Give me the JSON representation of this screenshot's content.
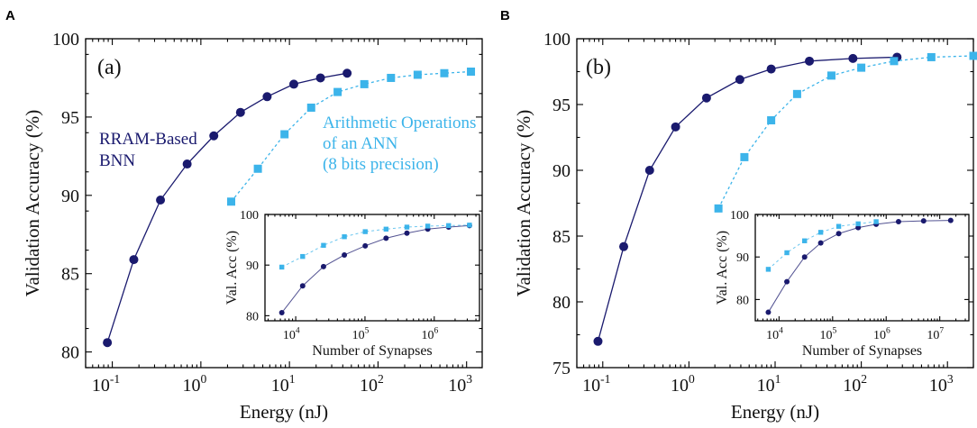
{
  "colors": {
    "rram": "#1a1a6e",
    "ann": "#3cb4ea",
    "axis": "#000000"
  },
  "chart_data": [
    {
      "panel": "A",
      "tag": "(a)",
      "type": "line",
      "xlabel": "Energy (nJ)",
      "ylabel": "Validation Accuracy (%)",
      "xscale": "log",
      "xlim": [
        0.05,
        1500
      ],
      "ylim": [
        79,
        100
      ],
      "xticks": [
        {
          "v": 0.1,
          "base": "10",
          "exp": "-1"
        },
        {
          "v": 1,
          "base": "10",
          "exp": "0"
        },
        {
          "v": 10,
          "base": "10",
          "exp": "1"
        },
        {
          "v": 100,
          "base": "10",
          "exp": "2"
        },
        {
          "v": 1000,
          "base": "10",
          "exp": "3"
        }
      ],
      "yticks": [
        80,
        85,
        90,
        95,
        100
      ],
      "series": [
        {
          "name": "RRAM-Based BNN",
          "marker": "circle",
          "color": "#1a1a6e",
          "x": [
            0.088,
            0.175,
            0.35,
            0.7,
            1.4,
            2.8,
            5.6,
            11.2,
            22.4,
            44.8
          ],
          "y": [
            80.6,
            85.9,
            89.7,
            92.0,
            93.8,
            95.3,
            96.3,
            97.1,
            97.5,
            97.8
          ]
        },
        {
          "name": "Arithmetic Operations of an ANN (8 bits precision)",
          "marker": "square",
          "color": "#3cb4ea",
          "x": [
            2.2,
            4.4,
            8.8,
            17.6,
            35,
            70,
            140,
            280,
            560,
            1120
          ],
          "y": [
            89.6,
            91.7,
            93.9,
            95.6,
            96.6,
            97.1,
            97.5,
            97.7,
            97.8,
            97.9
          ]
        }
      ],
      "annotations": {
        "rram_line1": "RRAM-Based",
        "rram_line2": "BNN",
        "ann_line1": "Arithmetic Operations",
        "ann_line2": "of an ANN",
        "ann_line3": "(8 bits precision)"
      },
      "inset": {
        "type": "line",
        "xlabel": "Number of Synapses",
        "ylabel": "Val. Acc (%)",
        "xscale": "log",
        "xlim": [
          3600,
          4500000
        ],
        "ylim": [
          79,
          100
        ],
        "xticks": [
          {
            "v": 10000,
            "base": "10",
            "exp": "4"
          },
          {
            "v": 100000,
            "base": "10",
            "exp": "5"
          },
          {
            "v": 1000000,
            "base": "10",
            "exp": "6"
          }
        ],
        "yticks": [
          80,
          90,
          100
        ],
        "series": [
          {
            "name": "RRAM-Based BNN",
            "marker": "circle",
            "color": "#1a1a6e",
            "x": [
              6300,
              12600,
              25200,
              50400,
              100800,
              201600,
              403200,
              806400,
              1612800,
              3225600
            ],
            "y": [
              80.6,
              85.9,
              89.7,
              92.0,
              93.8,
              95.3,
              96.3,
              97.1,
              97.5,
              97.8
            ]
          },
          {
            "name": "ANN",
            "marker": "square",
            "color": "#3cb4ea",
            "x": [
              6300,
              12600,
              25200,
              50400,
              100800,
              201600,
              403200,
              806400,
              1612800,
              3225600
            ],
            "y": [
              89.6,
              91.7,
              93.9,
              95.6,
              96.6,
              97.1,
              97.5,
              97.7,
              97.8,
              97.9
            ]
          }
        ]
      }
    },
    {
      "panel": "B",
      "tag": "(b)",
      "type": "line",
      "xlabel": "Energy (nJ)",
      "ylabel": "Validation Accuracy (%)",
      "xscale": "log",
      "xlim": [
        0.05,
        2000
      ],
      "ylim": [
        75,
        100
      ],
      "xticks": [
        {
          "v": 0.1,
          "base": "10",
          "exp": "-1"
        },
        {
          "v": 1,
          "base": "10",
          "exp": "0"
        },
        {
          "v": 10,
          "base": "10",
          "exp": "1"
        },
        {
          "v": 100,
          "base": "10",
          "exp": "2"
        },
        {
          "v": 1000,
          "base": "10",
          "exp": "3"
        }
      ],
      "yticks": [
        75,
        80,
        85,
        90,
        95,
        100
      ],
      "series": [
        {
          "name": "RRAM-Based BNN",
          "marker": "circle",
          "color": "#1a1a6e",
          "x": [
            0.088,
            0.175,
            0.35,
            0.7,
            1.6,
            3.9,
            9.0,
            25,
            80,
            260
          ],
          "y": [
            77.0,
            84.2,
            90.0,
            93.3,
            95.5,
            96.9,
            97.7,
            98.3,
            98.5,
            98.6
          ]
        },
        {
          "name": "Arithmetic Operations of an ANN",
          "marker": "square",
          "color": "#3cb4ea",
          "x": [
            2.2,
            4.4,
            9.0,
            18,
            45,
            100,
            240,
            650,
            2000
          ],
          "y": [
            87.1,
            91.0,
            93.8,
            95.8,
            97.2,
            97.8,
            98.3,
            98.6,
            98.7
          ]
        }
      ],
      "inset": {
        "type": "line",
        "xlabel": "Number of Synapses",
        "ylabel": "Val. Acc (%)",
        "xscale": "log",
        "xlim": [
          3600,
          35000000
        ],
        "ylim": [
          75,
          100
        ],
        "xticks": [
          {
            "v": 10000,
            "base": "10",
            "exp": "4"
          },
          {
            "v": 100000,
            "base": "10",
            "exp": "5"
          },
          {
            "v": 1000000,
            "base": "10",
            "exp": "6"
          },
          {
            "v": 10000000,
            "base": "10",
            "exp": "7"
          }
        ],
        "yticks": [
          80,
          90,
          100
        ],
        "series": [
          {
            "name": "RRAM-Based BNN",
            "marker": "circle",
            "color": "#1a1a6e",
            "x": [
              6300,
              14000,
              30000,
              60000,
              130000,
              300000,
              650000,
              1700000,
              5000000,
              16000000
            ],
            "y": [
              77.0,
              84.2,
              90.0,
              93.3,
              95.5,
              96.9,
              97.7,
              98.3,
              98.5,
              98.6
            ]
          },
          {
            "name": "ANN",
            "marker": "square",
            "color": "#3cb4ea",
            "x": [
              6300,
              14000,
              30000,
              60000,
              130000,
              300000,
              650000
            ],
            "y": [
              87.1,
              91.0,
              93.8,
              95.8,
              97.2,
              97.8,
              98.3
            ]
          }
        ]
      }
    }
  ]
}
